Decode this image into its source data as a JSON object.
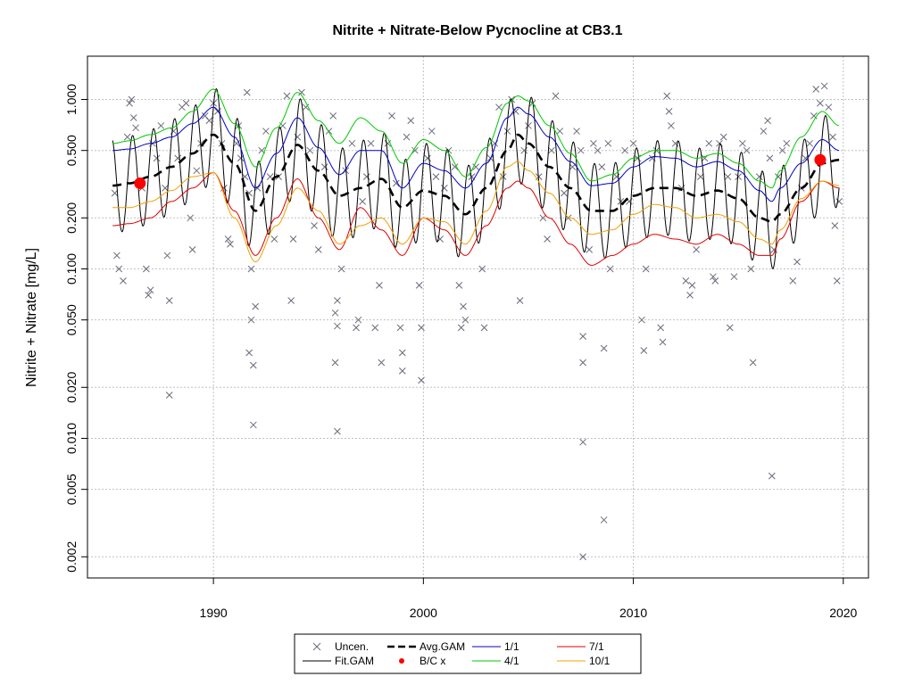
{
  "chart_data": {
    "type": "line",
    "title": "Nitrite + Nitrate-Below Pycnocline at CB3.1",
    "xlabel": "",
    "ylabel": "Nitrite + Nitrate [mg/L]",
    "y_scale": "log",
    "xlim": [
      1984.0,
      2021.2
    ],
    "ylim": [
      0.0015,
      1.8
    ],
    "x_ticks": [
      1990,
      2000,
      2010,
      2020
    ],
    "y_ticks": [
      0.002,
      0.005,
      0.01,
      0.02,
      0.05,
      0.1,
      0.2,
      0.5,
      1.0
    ],
    "y_tick_labels": [
      "0.002",
      "0.005",
      "0.010",
      "0.020",
      "0.050",
      "0.100",
      "0.200",
      "0.500",
      "1.000"
    ],
    "grid": true,
    "legend_position": "bottom",
    "colors": {
      "uncen": "#6b6b7b",
      "fit_gam": "#000000",
      "avg_gam": "#000000",
      "bc": "#ff0000",
      "d1_1": "#0000c8",
      "d4_1": "#00c800",
      "d7_1": "#e00000",
      "d10_1": "#f0a000",
      "grid": "#c0c0c0"
    },
    "legend": [
      {
        "label": "Uncen.",
        "key": "uncen",
        "symbol": "x"
      },
      {
        "label": "Fit.GAM",
        "key": "fit_gam",
        "symbol": "line"
      },
      {
        "label": "Avg.GAM",
        "key": "avg_gam",
        "symbol": "dash"
      },
      {
        "label": "B/C x",
        "key": "bc",
        "symbol": "dot"
      },
      {
        "label": "1/1",
        "key": "d1_1",
        "symbol": "line"
      },
      {
        "label": "4/1",
        "key": "d4_1",
        "symbol": "line"
      },
      {
        "label": "7/1",
        "key": "d7_1",
        "symbol": "line"
      },
      {
        "label": "10/1",
        "key": "d10_1",
        "symbol": "line"
      }
    ],
    "series": [
      {
        "name": "Avg.GAM",
        "x": [
          1985.2,
          1986.0,
          1987.0,
          1988.0,
          1989.0,
          1990.0,
          1991.0,
          1992.0,
          1993.0,
          1994.0,
          1995.0,
          1996.0,
          1997.0,
          1998.0,
          1999.0,
          2000.0,
          2001.0,
          2002.0,
          2003.0,
          2004.0,
          2004.5,
          2005.0,
          2006.0,
          2007.0,
          2008.0,
          2009.0,
          2010.0,
          2011.0,
          2012.0,
          2013.0,
          2014.0,
          2015.0,
          2016.0,
          2016.6,
          2017.0,
          2018.0,
          2019.0,
          2019.8
        ],
        "y": [
          0.31,
          0.32,
          0.35,
          0.4,
          0.48,
          0.62,
          0.42,
          0.22,
          0.35,
          0.54,
          0.38,
          0.27,
          0.3,
          0.34,
          0.23,
          0.29,
          0.27,
          0.21,
          0.3,
          0.5,
          0.62,
          0.55,
          0.4,
          0.3,
          0.22,
          0.22,
          0.27,
          0.3,
          0.3,
          0.27,
          0.29,
          0.26,
          0.2,
          0.19,
          0.21,
          0.3,
          0.42,
          0.44
        ]
      },
      {
        "name": "1/1",
        "x": [
          1985.2,
          1986.0,
          1987.0,
          1988.0,
          1989.0,
          1990.0,
          1991.0,
          1992.0,
          1993.0,
          1994.0,
          1995.0,
          1996.0,
          1997.0,
          1998.0,
          1999.0,
          2000.0,
          2001.0,
          2002.0,
          2003.0,
          2004.0,
          2004.5,
          2005.0,
          2006.0,
          2007.0,
          2008.0,
          2009.0,
          2010.0,
          2011.0,
          2012.0,
          2013.0,
          2014.0,
          2015.0,
          2016.0,
          2016.6,
          2017.0,
          2018.0,
          2019.0,
          2019.8
        ],
        "y": [
          0.5,
          0.51,
          0.55,
          0.6,
          0.72,
          0.9,
          0.6,
          0.3,
          0.48,
          0.78,
          0.52,
          0.36,
          0.5,
          0.5,
          0.3,
          0.42,
          0.38,
          0.3,
          0.42,
          0.78,
          0.9,
          0.82,
          0.6,
          0.43,
          0.31,
          0.32,
          0.4,
          0.46,
          0.45,
          0.4,
          0.43,
          0.38,
          0.29,
          0.25,
          0.3,
          0.42,
          0.58,
          0.5
        ]
      },
      {
        "name": "4/1",
        "x": [
          1985.2,
          1986.0,
          1987.0,
          1988.0,
          1989.0,
          1990.0,
          1991.0,
          1992.0,
          1993.0,
          1994.0,
          1995.0,
          1996.0,
          1997.0,
          1998.0,
          1999.0,
          2000.0,
          2001.0,
          2002.0,
          2003.0,
          2004.0,
          2004.5,
          2005.0,
          2006.0,
          2007.0,
          2008.0,
          2009.0,
          2010.0,
          2011.0,
          2012.0,
          2013.0,
          2014.0,
          2015.0,
          2016.0,
          2016.6,
          2017.0,
          2018.0,
          2019.0,
          2019.8
        ],
        "y": [
          0.55,
          0.57,
          0.62,
          0.68,
          0.85,
          1.15,
          0.72,
          0.4,
          0.68,
          1.1,
          0.75,
          0.55,
          0.78,
          0.65,
          0.42,
          0.58,
          0.5,
          0.35,
          0.52,
          0.95,
          1.05,
          0.98,
          0.7,
          0.48,
          0.33,
          0.36,
          0.45,
          0.5,
          0.5,
          0.45,
          0.48,
          0.42,
          0.33,
          0.3,
          0.38,
          0.6,
          0.85,
          0.7
        ]
      },
      {
        "name": "7/1",
        "x": [
          1985.2,
          1986.0,
          1987.0,
          1988.0,
          1989.0,
          1990.0,
          1991.0,
          1992.0,
          1993.0,
          1994.0,
          1995.0,
          1996.0,
          1997.0,
          1998.0,
          1999.0,
          2000.0,
          2001.0,
          2002.0,
          2003.0,
          2004.0,
          2004.5,
          2005.0,
          2006.0,
          2007.0,
          2008.0,
          2009.0,
          2010.0,
          2011.0,
          2012.0,
          2013.0,
          2014.0,
          2015.0,
          2016.0,
          2016.6,
          2017.0,
          2018.0,
          2019.0,
          2019.8
        ],
        "y": [
          0.18,
          0.185,
          0.2,
          0.25,
          0.3,
          0.37,
          0.22,
          0.12,
          0.2,
          0.34,
          0.2,
          0.13,
          0.23,
          0.17,
          0.12,
          0.2,
          0.17,
          0.12,
          0.18,
          0.3,
          0.33,
          0.3,
          0.2,
          0.14,
          0.105,
          0.12,
          0.14,
          0.16,
          0.15,
          0.14,
          0.16,
          0.14,
          0.12,
          0.12,
          0.15,
          0.25,
          0.33,
          0.3
        ]
      },
      {
        "name": "10/1",
        "x": [
          1985.2,
          1986.0,
          1987.0,
          1988.0,
          1989.0,
          1990.0,
          1991.0,
          1992.0,
          1993.0,
          1994.0,
          1995.0,
          1996.0,
          1997.0,
          1998.0,
          1999.0,
          2000.0,
          2001.0,
          2002.0,
          2003.0,
          2004.0,
          2004.5,
          2005.0,
          2006.0,
          2007.0,
          2008.0,
          2009.0,
          2010.0,
          2011.0,
          2012.0,
          2013.0,
          2014.0,
          2015.0,
          2016.0,
          2016.6,
          2017.0,
          2018.0,
          2019.0,
          2019.8
        ],
        "y": [
          0.23,
          0.23,
          0.25,
          0.29,
          0.35,
          0.37,
          0.2,
          0.11,
          0.18,
          0.3,
          0.22,
          0.14,
          0.18,
          0.2,
          0.14,
          0.2,
          0.19,
          0.14,
          0.22,
          0.4,
          0.43,
          0.38,
          0.28,
          0.2,
          0.16,
          0.17,
          0.21,
          0.24,
          0.23,
          0.2,
          0.21,
          0.19,
          0.15,
          0.14,
          0.17,
          0.26,
          0.33,
          0.31
        ]
      }
    ],
    "fit_gam": {
      "amplitude_log10": 0.28,
      "phase_years": 0.15,
      "base": "Avg.GAM"
    },
    "bc_points": [
      {
        "x": 1986.5,
        "y": 0.32
      },
      {
        "x": 2018.9,
        "y": 0.44
      }
    ],
    "uncensored_points": [
      [
        1985.3,
        0.28
      ],
      [
        1985.4,
        0.12
      ],
      [
        1985.5,
        0.1
      ],
      [
        1985.7,
        0.085
      ],
      [
        1985.9,
        0.6
      ],
      [
        1986.0,
        0.95
      ],
      [
        1986.1,
        1.0
      ],
      [
        1986.2,
        0.78
      ],
      [
        1986.3,
        0.68
      ],
      [
        1986.6,
        0.3
      ],
      [
        1986.8,
        0.1
      ],
      [
        1986.9,
        0.07
      ],
      [
        1987.0,
        0.075
      ],
      [
        1987.1,
        0.55
      ],
      [
        1987.3,
        0.45
      ],
      [
        1987.5,
        0.7
      ],
      [
        1987.7,
        0.3
      ],
      [
        1987.8,
        0.12
      ],
      [
        1987.9,
        0.065
      ],
      [
        1987.9,
        0.018
      ],
      [
        1988.1,
        0.65
      ],
      [
        1988.3,
        0.45
      ],
      [
        1988.5,
        0.9
      ],
      [
        1988.7,
        0.95
      ],
      [
        1988.9,
        0.2
      ],
      [
        1989.0,
        0.13
      ],
      [
        1989.2,
        0.38
      ],
      [
        1989.4,
        0.55
      ],
      [
        1989.6,
        0.8
      ],
      [
        1989.8,
        0.75
      ],
      [
        1990.0,
        0.95
      ],
      [
        1990.2,
        0.85
      ],
      [
        1990.4,
        0.55
      ],
      [
        1990.5,
        0.3
      ],
      [
        1990.7,
        0.15
      ],
      [
        1990.8,
        0.14
      ],
      [
        1991.1,
        0.55
      ],
      [
        1991.2,
        0.7
      ],
      [
        1991.3,
        0.45
      ],
      [
        1991.5,
        0.35
      ],
      [
        1991.6,
        1.1
      ],
      [
        1991.7,
        0.28
      ],
      [
        1991.8,
        0.1
      ],
      [
        1991.8,
        0.05
      ],
      [
        1991.7,
        0.032
      ],
      [
        1991.9,
        0.027
      ],
      [
        1991.9,
        0.012
      ],
      [
        1992.0,
        0.06
      ],
      [
        1992.1,
        0.3
      ],
      [
        1992.3,
        0.5
      ],
      [
        1992.5,
        0.65
      ],
      [
        1992.7,
        0.35
      ],
      [
        1992.9,
        0.15
      ],
      [
        1993.1,
        0.35
      ],
      [
        1993.3,
        0.7
      ],
      [
        1993.5,
        1.05
      ],
      [
        1993.7,
        0.065
      ],
      [
        1993.8,
        0.15
      ],
      [
        1994.0,
        0.6
      ],
      [
        1994.2,
        1.1
      ],
      [
        1994.4,
        0.9
      ],
      [
        1994.6,
        0.5
      ],
      [
        1994.8,
        0.18
      ],
      [
        1995.0,
        0.13
      ],
      [
        1995.3,
        0.4
      ],
      [
        1995.5,
        0.65
      ],
      [
        1995.7,
        0.8
      ],
      [
        1995.8,
        0.055
      ],
      [
        1995.9,
        0.046
      ],
      [
        1995.9,
        0.065
      ],
      [
        1995.8,
        0.028
      ],
      [
        1995.9,
        0.011
      ],
      [
        1996.1,
        0.1
      ],
      [
        1996.3,
        0.38
      ],
      [
        1996.6,
        0.55
      ],
      [
        1996.8,
        0.045
      ],
      [
        1996.9,
        0.05
      ],
      [
        1997.1,
        0.25
      ],
      [
        1997.3,
        0.35
      ],
      [
        1997.5,
        0.55
      ],
      [
        1997.7,
        0.045
      ],
      [
        1997.9,
        0.08
      ],
      [
        1998.0,
        0.028
      ],
      [
        1998.3,
        0.55
      ],
      [
        1998.5,
        0.8
      ],
      [
        1998.7,
        0.32
      ],
      [
        1998.9,
        0.045
      ],
      [
        1999.0,
        0.032
      ],
      [
        1999.0,
        0.025
      ],
      [
        1999.2,
        0.6
      ],
      [
        1999.4,
        0.75
      ],
      [
        1999.6,
        0.5
      ],
      [
        1999.8,
        0.08
      ],
      [
        1999.9,
        0.045
      ],
      [
        1999.9,
        0.022
      ],
      [
        2000.2,
        0.45
      ],
      [
        2000.4,
        0.65
      ],
      [
        2000.6,
        0.35
      ],
      [
        2000.8,
        0.15
      ],
      [
        2001.0,
        0.3
      ],
      [
        2001.2,
        0.5
      ],
      [
        2001.5,
        0.4
      ],
      [
        2001.7,
        0.08
      ],
      [
        2001.8,
        0.045
      ],
      [
        2001.9,
        0.06
      ],
      [
        2002.0,
        0.05
      ],
      [
        2002.3,
        0.35
      ],
      [
        2002.5,
        0.4
      ],
      [
        2002.8,
        0.1
      ],
      [
        2002.9,
        0.045
      ],
      [
        2003.2,
        0.45
      ],
      [
        2003.4,
        0.55
      ],
      [
        2003.6,
        0.9
      ],
      [
        2003.8,
        0.35
      ],
      [
        2004.0,
        0.65
      ],
      [
        2004.2,
        1.0
      ],
      [
        2004.4,
        0.85
      ],
      [
        2004.6,
        0.065
      ],
      [
        2004.8,
        0.5
      ],
      [
        2005.0,
        0.7
      ],
      [
        2005.2,
        0.95
      ],
      [
        2005.5,
        0.35
      ],
      [
        2005.7,
        0.2
      ],
      [
        2005.9,
        0.15
      ],
      [
        2006.1,
        0.5
      ],
      [
        2006.3,
        1.05
      ],
      [
        2006.5,
        0.65
      ],
      [
        2006.7,
        0.28
      ],
      [
        2006.9,
        0.2
      ],
      [
        2007.1,
        0.4
      ],
      [
        2007.3,
        0.65
      ],
      [
        2007.5,
        0.5
      ],
      [
        2007.6,
        0.04
      ],
      [
        2007.6,
        0.028
      ],
      [
        2007.6,
        0.0095
      ],
      [
        2007.6,
        0.002
      ],
      [
        2007.9,
        0.13
      ],
      [
        2008.1,
        0.55
      ],
      [
        2008.3,
        0.5
      ],
      [
        2008.5,
        0.4
      ],
      [
        2008.6,
        0.0033
      ],
      [
        2008.6,
        0.034
      ],
      [
        2008.8,
        0.55
      ],
      [
        2008.9,
        0.1
      ],
      [
        2009.2,
        0.35
      ],
      [
        2009.4,
        0.25
      ],
      [
        2009.6,
        0.5
      ],
      [
        2009.8,
        0.25
      ],
      [
        2010.0,
        0.55
      ],
      [
        2010.2,
        0.45
      ],
      [
        2010.4,
        0.05
      ],
      [
        2010.5,
        0.033
      ],
      [
        2010.6,
        0.1
      ],
      [
        2010.9,
        0.45
      ],
      [
        2011.1,
        0.5
      ],
      [
        2011.3,
        0.045
      ],
      [
        2011.4,
        0.037
      ],
      [
        2011.6,
        1.05
      ],
      [
        2011.7,
        0.85
      ],
      [
        2011.8,
        0.7
      ],
      [
        2012.0,
        0.55
      ],
      [
        2012.3,
        0.3
      ],
      [
        2012.5,
        0.085
      ],
      [
        2012.7,
        0.07
      ],
      [
        2012.8,
        0.08
      ],
      [
        2013.0,
        0.13
      ],
      [
        2013.2,
        0.35
      ],
      [
        2013.4,
        0.45
      ],
      [
        2013.6,
        0.55
      ],
      [
        2013.8,
        0.09
      ],
      [
        2013.9,
        0.085
      ],
      [
        2014.1,
        0.55
      ],
      [
        2014.3,
        0.6
      ],
      [
        2014.5,
        0.35
      ],
      [
        2014.6,
        0.045
      ],
      [
        2014.8,
        0.09
      ],
      [
        2015.0,
        0.35
      ],
      [
        2015.2,
        0.55
      ],
      [
        2015.4,
        0.5
      ],
      [
        2015.6,
        0.1
      ],
      [
        2015.7,
        0.028
      ],
      [
        2016.0,
        0.35
      ],
      [
        2016.2,
        0.65
      ],
      [
        2016.4,
        0.75
      ],
      [
        2016.5,
        0.45
      ],
      [
        2016.6,
        0.006
      ],
      [
        2016.7,
        0.13
      ],
      [
        2016.9,
        0.35
      ],
      [
        2017.1,
        0.5
      ],
      [
        2017.3,
        0.55
      ],
      [
        2017.6,
        0.085
      ],
      [
        2017.8,
        0.11
      ],
      [
        2018.0,
        0.3
      ],
      [
        2018.2,
        0.45
      ],
      [
        2018.4,
        0.55
      ],
      [
        2018.6,
        0.8
      ],
      [
        2018.7,
        1.15
      ],
      [
        2018.9,
        0.95
      ],
      [
        2019.1,
        1.2
      ],
      [
        2019.3,
        0.9
      ],
      [
        2019.5,
        0.6
      ],
      [
        2019.6,
        0.18
      ],
      [
        2019.7,
        0.085
      ],
      [
        2019.8,
        0.25
      ]
    ]
  }
}
